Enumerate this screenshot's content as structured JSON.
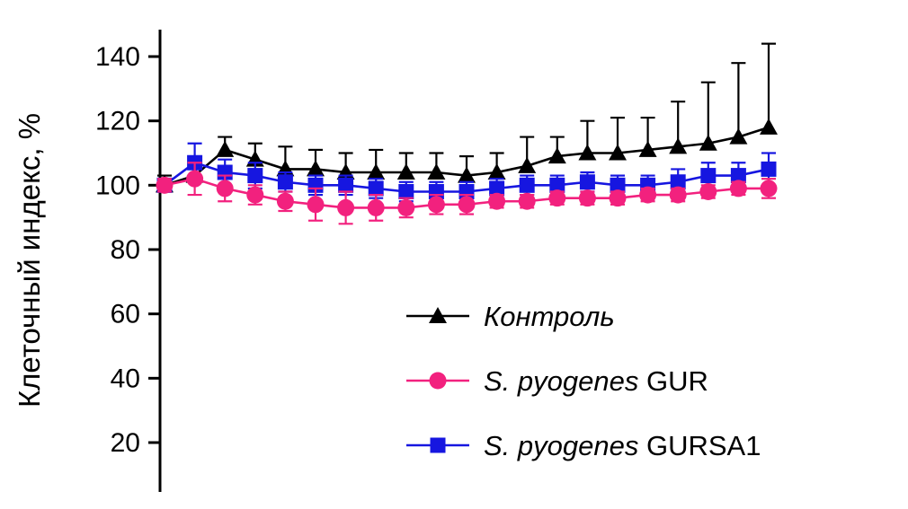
{
  "chart_data": {
    "type": "line",
    "title": "",
    "xlabel": "",
    "ylabel": "Клеточный индекс, %",
    "yticks": [
      20,
      40,
      60,
      80,
      100,
      120,
      140
    ],
    "ylim": [
      10,
      150
    ],
    "grid": false,
    "legend_position": "inside-bottom-center",
    "x": [
      1,
      2,
      3,
      4,
      5,
      6,
      7,
      8,
      9,
      10,
      11,
      12,
      13,
      14,
      15,
      16,
      17,
      18,
      19,
      20,
      21
    ],
    "series": [
      {
        "key": "control",
        "label_italic": "Контроль",
        "label_regular": "",
        "color": "#000000",
        "marker": "triangle",
        "err_type": "up",
        "values": [
          100,
          103,
          111,
          108,
          105,
          105,
          104,
          104,
          104,
          104,
          103,
          104,
          106,
          109,
          110,
          110,
          111,
          112,
          113,
          115,
          118
        ],
        "err": [
          3,
          5,
          4,
          5,
          7,
          6,
          6,
          7,
          6,
          6,
          6,
          6,
          9,
          6,
          10,
          11,
          10,
          14,
          19,
          23,
          26
        ]
      },
      {
        "key": "gur",
        "label_italic": "S. pyogenes",
        "label_regular": " GUR",
        "color": "#F2217E",
        "marker": "circle",
        "err_type": "sym",
        "values": [
          100,
          102,
          99,
          97,
          95,
          94,
          93,
          93,
          93,
          94,
          94,
          95,
          95,
          96,
          96,
          96,
          97,
          97,
          98,
          99,
          99
        ],
        "err": [
          2,
          5,
          4,
          3,
          3,
          5,
          5,
          4,
          3,
          3,
          3,
          2,
          2,
          2,
          2,
          2,
          2,
          2,
          2,
          2,
          3
        ]
      },
      {
        "key": "gursa1",
        "label_italic": "S. pyogenes",
        "label_regular": " GURSA1",
        "color": "#1616E0",
        "marker": "square",
        "err_type": "sym",
        "values": [
          100,
          107,
          104,
          103,
          101,
          100,
          100,
          99,
          98,
          98,
          98,
          99,
          100,
          100,
          101,
          100,
          100,
          101,
          103,
          103,
          105
        ],
        "err": [
          2,
          6,
          4,
          4,
          3,
          3,
          3,
          3,
          3,
          3,
          3,
          3,
          3,
          3,
          3,
          3,
          3,
          4,
          4,
          4,
          5
        ]
      }
    ]
  }
}
